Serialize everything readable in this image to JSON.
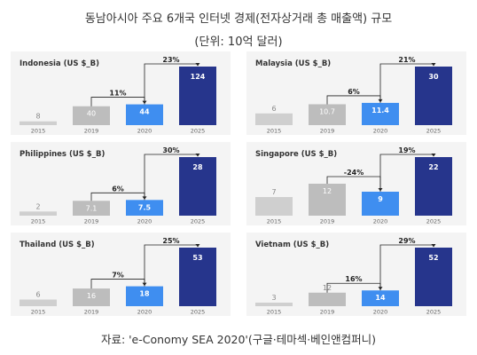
{
  "title": "동남아시아 주요 6개국 인터넷 경제(전자상거래 총 매출액) 규모",
  "subtitle": "(단위: 10억 달러)",
  "source": "자료: 'e-Conomy SEA 2020'(구글·테마섹·베인앤컴퍼니)",
  "colors": {
    "2015": "#cfcfcf",
    "2019": "#bdbdbd",
    "2020": "#3f8ef0",
    "2025": "#26358c",
    "panel_bg": "#f4f4f4",
    "label_dark": "#444444",
    "label_light": "#888888"
  },
  "chart_data": [
    {
      "type": "bar",
      "title": "Indonesia (US $_B)",
      "categories": [
        "2015",
        "2019",
        "2020",
        "2025"
      ],
      "values": [
        8,
        40,
        44,
        124
      ],
      "growth": [
        "11%",
        "23%"
      ]
    },
    {
      "type": "bar",
      "title": "Malaysia (US $_B)",
      "categories": [
        "2015",
        "2019",
        "2020",
        "2025"
      ],
      "values": [
        6,
        10.7,
        11.4,
        30
      ],
      "growth": [
        "6%",
        "21%"
      ]
    },
    {
      "type": "bar",
      "title": "Philippines (US $_B)",
      "categories": [
        "2015",
        "2019",
        "2020",
        "2025"
      ],
      "values": [
        2,
        7.1,
        7.5,
        28
      ],
      "growth": [
        "6%",
        "30%"
      ]
    },
    {
      "type": "bar",
      "title": "Singapore (US $_B)",
      "categories": [
        "2015",
        "2019",
        "2020",
        "2025"
      ],
      "values": [
        7,
        12,
        9,
        22
      ],
      "growth": [
        "-24%",
        "19%"
      ]
    },
    {
      "type": "bar",
      "title": "Thailand (US $_B)",
      "categories": [
        "2015",
        "2019",
        "2020",
        "2025"
      ],
      "values": [
        6,
        16,
        18,
        53
      ],
      "growth": [
        "7%",
        "25%"
      ]
    },
    {
      "type": "bar",
      "title": "Vietnam (US $_B)",
      "categories": [
        "2015",
        "2019",
        "2020",
        "2025"
      ],
      "values": [
        3,
        12,
        14,
        52
      ],
      "growth": [
        "16%",
        "29%"
      ]
    }
  ]
}
